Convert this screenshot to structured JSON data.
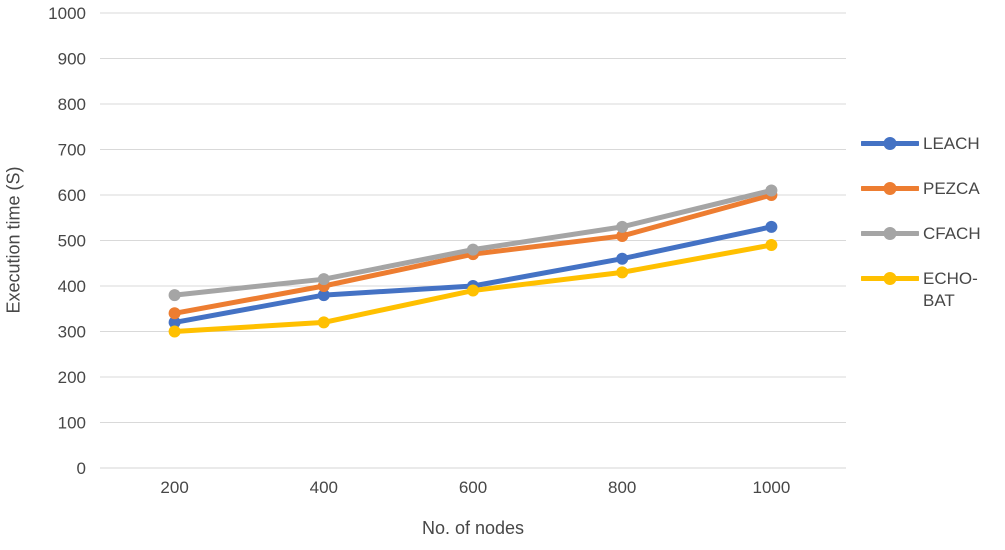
{
  "chart_data": {
    "type": "line",
    "xlabel": "No. of nodes",
    "ylabel": "Execution time (S)",
    "categories": [
      200,
      400,
      600,
      800,
      1000
    ],
    "series": [
      {
        "name": "LEACH",
        "color": "#4472C4",
        "values": [
          320,
          380,
          400,
          460,
          530
        ]
      },
      {
        "name": "PEZCA",
        "color": "#ED7D31",
        "values": [
          340,
          400,
          470,
          510,
          600
        ]
      },
      {
        "name": "CFACH",
        "color": "#A5A5A5",
        "values": [
          380,
          415,
          480,
          530,
          610
        ]
      },
      {
        "name": "ECHO-BAT",
        "color": "#FFC000",
        "values": [
          300,
          320,
          390,
          430,
          490
        ]
      }
    ],
    "ylim": [
      0,
      1000
    ],
    "ytick_step": 100,
    "grid": true,
    "legend_position": "right",
    "legend_labels": [
      "LEACH",
      "PEZCA",
      "CFACH",
      "ECHO-BAT"
    ],
    "colors": {
      "gridline": "#D9D9D9",
      "axis_line": "#D6D6D6",
      "text": "#474747",
      "background": "#FFFFFF"
    }
  }
}
